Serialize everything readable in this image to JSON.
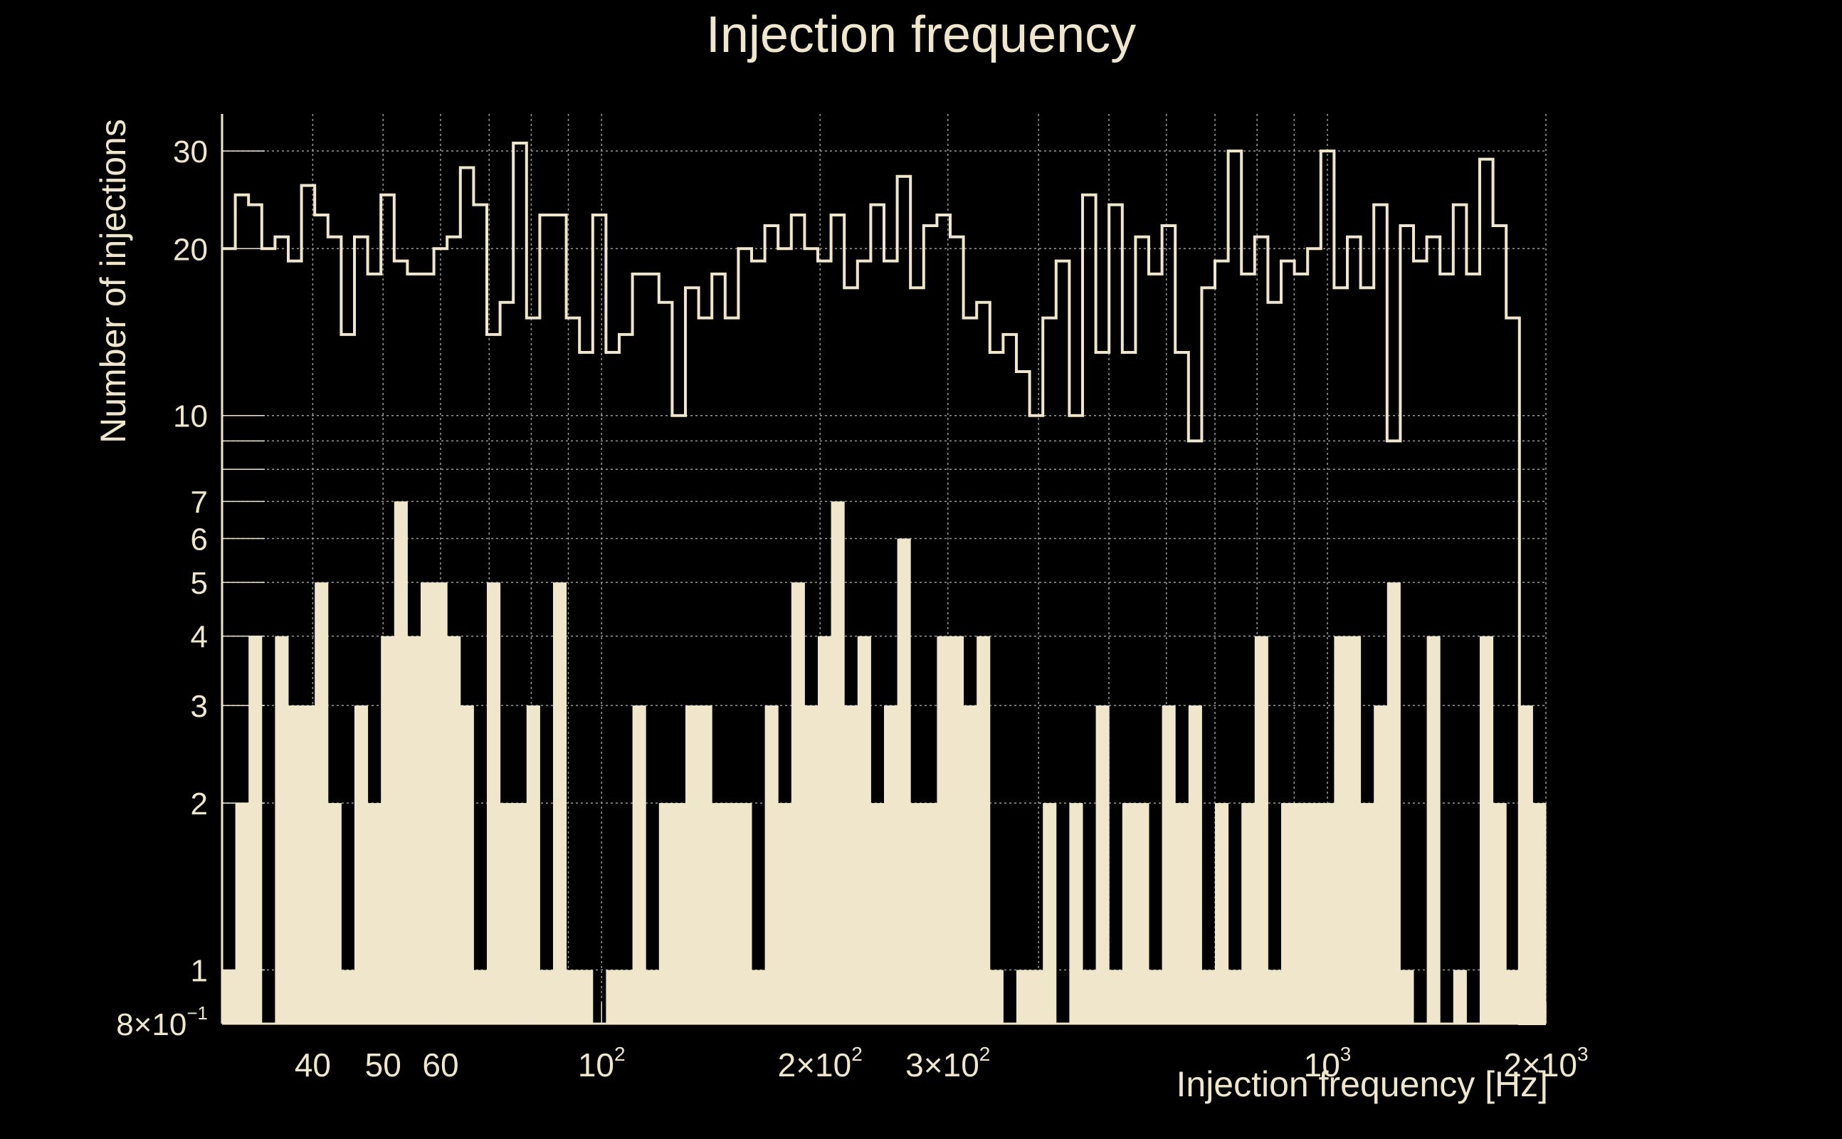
{
  "chart_data": {
    "type": "bar",
    "title": "Injection frequency",
    "xlabel": "Injection frequency [Hz]",
    "ylabel": "Number of injections",
    "xscale": "log",
    "yscale": "log",
    "xlim": [
      30,
      2000
    ],
    "ylim": [
      0.8,
      35
    ],
    "grid": true,
    "x_ticks": [
      {
        "value": 40,
        "label": "40"
      },
      {
        "value": 50,
        "label": "50"
      },
      {
        "value": 60,
        "label": "60"
      },
      {
        "value": 100,
        "label": "10",
        "sup": "2"
      },
      {
        "value": 200,
        "label": "2×10",
        "sup": "2"
      },
      {
        "value": 300,
        "label": "3×10",
        "sup": "2"
      },
      {
        "value": 1000,
        "label": "10",
        "sup": "3"
      },
      {
        "value": 2000,
        "label": "2×10",
        "sup": "3"
      }
    ],
    "y_ticks": [
      {
        "value": 0.8,
        "label": "8×10",
        "sup": "−1"
      },
      {
        "value": 1,
        "label": "1"
      },
      {
        "value": 2,
        "label": "2"
      },
      {
        "value": 3,
        "label": "3"
      },
      {
        "value": 4,
        "label": "4"
      },
      {
        "value": 5,
        "label": "5"
      },
      {
        "value": 6,
        "label": "6"
      },
      {
        "value": 7,
        "label": "7"
      },
      {
        "value": 10,
        "label": "10"
      },
      {
        "value": 20,
        "label": "20"
      },
      {
        "value": 30,
        "label": "30"
      }
    ],
    "series": [
      {
        "style": "filled",
        "values": [
          1,
          2,
          4,
          0,
          4,
          3,
          3,
          5,
          2,
          1,
          3,
          2,
          4,
          7,
          4,
          5,
          5,
          4,
          3,
          1,
          5,
          2,
          2,
          3,
          1,
          5,
          1,
          1,
          0,
          1,
          1,
          3,
          1,
          2,
          2,
          3,
          3,
          2,
          2,
          2,
          1,
          3,
          2,
          5,
          3,
          4,
          7,
          3,
          4,
          2,
          3,
          6,
          2,
          2,
          4,
          4,
          3,
          4,
          1,
          0,
          1,
          1,
          2,
          0,
          2,
          1,
          3,
          1,
          2,
          2,
          1,
          3,
          2,
          3,
          1,
          2,
          1,
          2,
          4,
          1,
          2,
          2,
          2,
          2,
          4,
          4,
          2,
          3,
          5,
          1,
          0,
          4,
          0,
          1,
          0,
          4,
          2,
          1,
          3,
          2
        ]
      },
      {
        "style": "outline",
        "values": [
          20,
          25,
          24,
          20,
          21,
          19,
          26,
          23,
          21,
          14,
          21,
          18,
          25,
          19,
          18,
          18,
          20,
          21,
          28,
          24,
          14,
          16,
          31,
          15,
          23,
          23,
          15,
          13,
          23,
          13,
          14,
          18,
          18,
          16,
          10,
          17,
          15,
          18,
          15,
          20,
          19,
          22,
          20,
          23,
          20,
          19,
          23,
          17,
          19,
          24,
          19,
          27,
          17,
          22,
          23,
          21,
          15,
          16,
          13,
          14,
          12,
          10,
          15,
          19,
          10,
          25,
          13,
          24,
          13,
          21,
          18,
          22,
          13,
          9,
          17,
          19,
          30,
          18,
          21,
          16,
          19,
          18,
          20,
          30,
          17,
          21,
          17,
          24,
          9,
          22,
          19,
          21,
          18,
          24,
          18,
          29,
          22,
          15,
          0.8,
          0.8
        ]
      }
    ]
  }
}
